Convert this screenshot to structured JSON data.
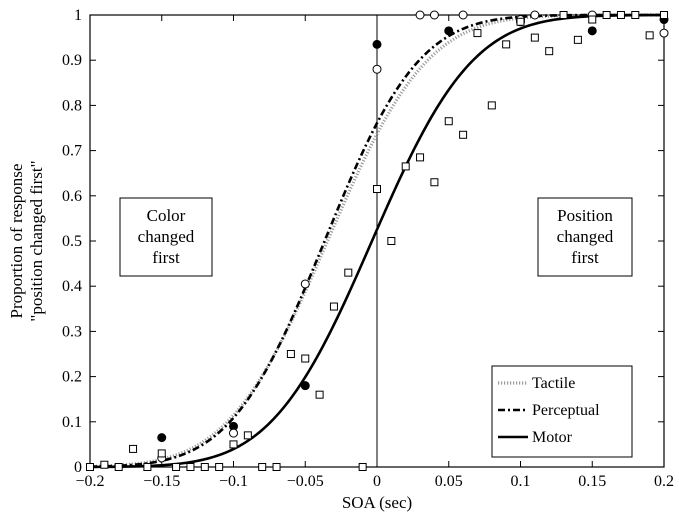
{
  "chart_data": {
    "type": "line",
    "title": "",
    "xlabel": "SOA (sec)",
    "ylabel_lines": [
      "Proportion of response",
      "\"position changed first\""
    ],
    "xlim": [
      -0.2,
      0.2
    ],
    "ylim": [
      0,
      1
    ],
    "x_ticks": [
      -0.2,
      -0.15,
      -0.1,
      -0.05,
      0,
      0.05,
      0.1,
      0.15,
      0.2
    ],
    "x_tick_labels": [
      "−0.2",
      "−0.15",
      "−0.1",
      "−0.05",
      "0",
      "0.05",
      "0.1",
      "0.15",
      "0.2"
    ],
    "y_ticks": [
      0,
      0.1,
      0.2,
      0.3,
      0.4,
      0.5,
      0.6,
      0.7,
      0.8,
      0.9,
      1
    ],
    "y_tick_labels": [
      "0",
      "0.1",
      "0.2",
      "0.3",
      "0.4",
      "0.5",
      "0.6",
      "0.7",
      "0.8",
      "0.9",
      "1"
    ],
    "grid": false,
    "legend_position": "bottom-right",
    "reference_line_x": 0,
    "annotations": [
      {
        "lines": [
          "Color",
          "changed",
          "first"
        ],
        "side": "left"
      },
      {
        "lines": [
          "Position",
          "changed",
          "first"
        ],
        "side": "right"
      }
    ],
    "series": [
      {
        "name": "Tactile",
        "style": "dotted",
        "mu": -0.0345,
        "sigma": 0.0545
      },
      {
        "name": "Perceptual",
        "style": "dashdot",
        "mu": -0.0365,
        "sigma": 0.0515
      },
      {
        "name": "Motor",
        "style": "solid",
        "mu": -0.0035,
        "sigma": 0.055
      }
    ],
    "points": [
      {
        "marker": "filled-circle",
        "x": [
          -0.15,
          -0.1,
          -0.05,
          0,
          0.05,
          0.1,
          0.15,
          0.2
        ],
        "y": [
          0.065,
          0.09,
          0.18,
          0.935,
          0.965,
          0.985,
          0.965,
          0.99
        ]
      },
      {
        "marker": "open-circle",
        "x": [
          -0.15,
          -0.1,
          -0.05,
          0,
          0.03,
          0.04,
          0.06,
          0.1,
          0.11,
          0.15,
          0.2
        ],
        "y": [
          0.02,
          0.075,
          0.405,
          0.88,
          1.0,
          1.0,
          1.0,
          0.99,
          1.0,
          1.0,
          0.96
        ]
      },
      {
        "marker": "open-square",
        "x": [
          -0.2,
          -0.19,
          -0.18,
          -0.17,
          -0.16,
          -0.15,
          -0.14,
          -0.13,
          -0.12,
          -0.11,
          -0.1,
          -0.09,
          -0.08,
          -0.07,
          -0.06,
          -0.05,
          -0.04,
          -0.03,
          -0.02,
          -0.01,
          0,
          0.01,
          0.02,
          0.03,
          0.04,
          0.05,
          0.06,
          0.07,
          0.08,
          0.09,
          0.1,
          0.11,
          0.12,
          0.13,
          0.14,
          0.15,
          0.16,
          0.17,
          0.18,
          0.19,
          0.2
        ],
        "y": [
          0,
          0.005,
          0,
          0.04,
          0,
          0.03,
          0,
          0,
          0,
          0,
          0.05,
          0.07,
          0,
          0,
          0.25,
          0.24,
          0.16,
          0.355,
          0.43,
          0,
          0.615,
          0.5,
          0.665,
          0.685,
          0.63,
          0.765,
          0.735,
          0.96,
          0.8,
          0.935,
          0.985,
          0.95,
          0.92,
          1.0,
          0.945,
          0.99,
          1.0,
          1.0,
          1.0,
          0.955,
          1.0
        ]
      }
    ]
  }
}
